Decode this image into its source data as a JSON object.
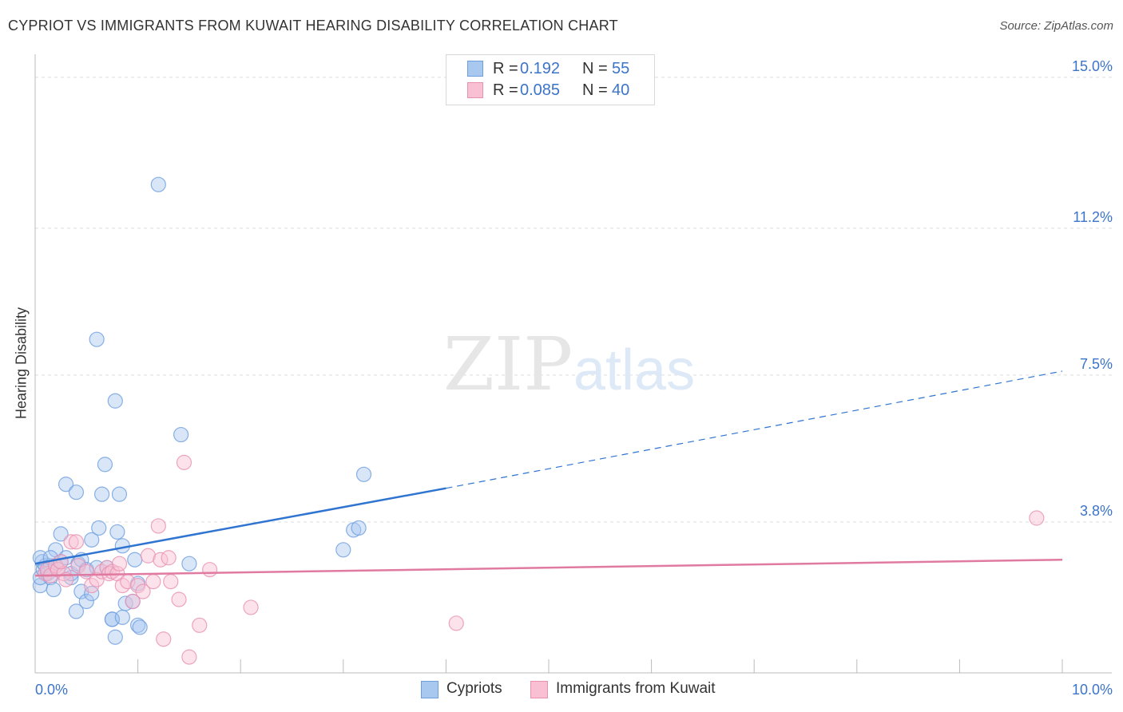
{
  "header": {
    "title": "CYPRIOT VS IMMIGRANTS FROM KUWAIT HEARING DISABILITY CORRELATION CHART",
    "source": "Source: ZipAtlas.com"
  },
  "watermark": {
    "zip": "ZIP",
    "atlas": "atlas"
  },
  "stats_box": {
    "rows": [
      {
        "r_label": "R =",
        "r_value": "0.192",
        "n_label": "N =",
        "n_value": "55",
        "color": "#a9c8f0",
        "border": "#6d9ee0"
      },
      {
        "r_label": "R =",
        "r_value": "0.085",
        "n_label": "N =",
        "n_value": "40",
        "color": "#f8c0d2",
        "border": "#e890b0"
      }
    ]
  },
  "legend": {
    "items": [
      {
        "label": "Cypriots",
        "color": "#a9c8f0",
        "border": "#6d9ee0"
      },
      {
        "label": "Immigrants from Kuwait",
        "color": "#f8c0d2",
        "border": "#e890b0"
      }
    ]
  },
  "chart_data": {
    "type": "scatter",
    "title": "CYPRIOT VS IMMIGRANTS FROM KUWAIT HEARING DISABILITY CORRELATION CHART",
    "xlabel": "",
    "ylabel": "Hearing Disability",
    "xlim": [
      0,
      10
    ],
    "ylim": [
      0,
      15.5
    ],
    "x_tick_labels": [
      "0.0%",
      "10.0%"
    ],
    "y_ticks": [
      3.8,
      7.5,
      11.2,
      15.0
    ],
    "y_tick_labels": [
      "3.8%",
      "7.5%",
      "11.2%",
      "15.0%"
    ],
    "grid": true,
    "series": [
      {
        "name": "Cypriots",
        "color": "#6d9ee0",
        "fill": "#a9c8f0",
        "trend_color": "#2f74d0",
        "trend": {
          "x0": 0.0,
          "y0": 2.75,
          "x1": 4.0,
          "y1": 4.65,
          "dash_to_x": 10.0,
          "dash_to_y": 7.6
        },
        "points": [
          [
            0.05,
            2.2
          ],
          [
            0.05,
            2.4
          ],
          [
            0.07,
            2.8
          ],
          [
            0.08,
            2.6
          ],
          [
            0.1,
            2.7
          ],
          [
            0.12,
            2.5
          ],
          [
            0.15,
            2.4
          ],
          [
            0.15,
            2.7
          ],
          [
            0.18,
            2.1
          ],
          [
            0.2,
            3.1
          ],
          [
            0.22,
            2.6
          ],
          [
            0.25,
            2.8
          ],
          [
            0.25,
            3.5
          ],
          [
            0.3,
            2.9
          ],
          [
            0.3,
            4.75
          ],
          [
            0.35,
            2.4
          ],
          [
            0.35,
            2.5
          ],
          [
            0.4,
            4.55
          ],
          [
            0.4,
            1.55
          ],
          [
            0.42,
            2.75
          ],
          [
            0.45,
            2.85
          ],
          [
            0.45,
            2.05
          ],
          [
            0.5,
            1.8
          ],
          [
            0.5,
            2.6
          ],
          [
            0.55,
            2.0
          ],
          [
            0.55,
            3.35
          ],
          [
            0.6,
            2.65
          ],
          [
            0.6,
            8.4
          ],
          [
            0.62,
            3.65
          ],
          [
            0.65,
            4.5
          ],
          [
            0.68,
            5.25
          ],
          [
            0.7,
            2.65
          ],
          [
            0.75,
            1.35
          ],
          [
            0.75,
            1.35
          ],
          [
            0.78,
            6.85
          ],
          [
            0.78,
            0.9
          ],
          [
            0.8,
            3.55
          ],
          [
            0.82,
            4.5
          ],
          [
            0.85,
            1.4
          ],
          [
            0.85,
            3.2
          ],
          [
            0.88,
            1.75
          ],
          [
            0.95,
            1.8
          ],
          [
            0.97,
            2.85
          ],
          [
            1.0,
            1.2
          ],
          [
            1.0,
            2.25
          ],
          [
            1.02,
            1.15
          ],
          [
            1.2,
            12.3
          ],
          [
            1.42,
            6.0
          ],
          [
            1.5,
            2.75
          ],
          [
            3.0,
            3.1
          ],
          [
            3.1,
            3.6
          ],
          [
            3.15,
            3.65
          ],
          [
            3.2,
            5.0
          ],
          [
            0.05,
            2.9
          ],
          [
            0.15,
            2.9
          ]
        ]
      },
      {
        "name": "Immigrants from Kuwait",
        "color": "#e890b0",
        "fill": "#f8c0d2",
        "trend_color": "#e07aa0",
        "trend": {
          "x0": 0.0,
          "y0": 2.45,
          "x1": 10.0,
          "y1": 2.85
        },
        "points": [
          [
            0.1,
            2.5
          ],
          [
            0.12,
            2.6
          ],
          [
            0.15,
            2.45
          ],
          [
            0.2,
            2.7
          ],
          [
            0.22,
            2.6
          ],
          [
            0.28,
            2.5
          ],
          [
            0.3,
            2.35
          ],
          [
            0.35,
            3.3
          ],
          [
            0.4,
            3.3
          ],
          [
            0.42,
            2.7
          ],
          [
            0.5,
            2.55
          ],
          [
            0.55,
            2.2
          ],
          [
            0.6,
            2.35
          ],
          [
            0.65,
            2.55
          ],
          [
            0.7,
            2.65
          ],
          [
            0.72,
            2.5
          ],
          [
            0.75,
            2.55
          ],
          [
            0.8,
            2.5
          ],
          [
            0.82,
            2.75
          ],
          [
            0.85,
            2.2
          ],
          [
            0.9,
            2.3
          ],
          [
            0.95,
            1.8
          ],
          [
            1.0,
            2.2
          ],
          [
            1.05,
            2.05
          ],
          [
            1.1,
            2.95
          ],
          [
            1.15,
            2.3
          ],
          [
            1.2,
            3.7
          ],
          [
            1.22,
            2.85
          ],
          [
            1.25,
            0.85
          ],
          [
            1.3,
            2.9
          ],
          [
            1.32,
            2.3
          ],
          [
            1.4,
            1.85
          ],
          [
            1.45,
            5.3
          ],
          [
            1.5,
            0.4
          ],
          [
            1.6,
            1.2
          ],
          [
            1.7,
            2.6
          ],
          [
            2.1,
            1.65
          ],
          [
            4.1,
            1.25
          ],
          [
            9.75,
            3.9
          ],
          [
            0.25,
            2.8
          ]
        ]
      }
    ]
  }
}
